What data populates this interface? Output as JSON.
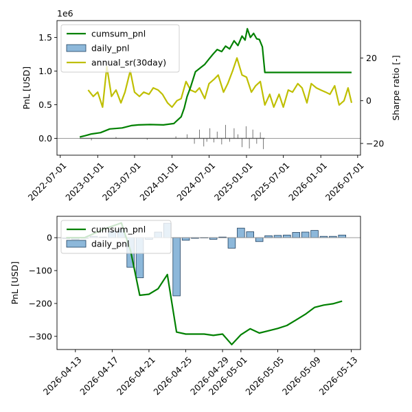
{
  "chart_data": [
    {
      "type": "line",
      "offset_text": "1e6",
      "ylabel": "PnL [USD]",
      "y2label": "Sharpe ratio [-]",
      "ylim": [
        -250000,
        1750000
      ],
      "y2lim": [
        -25.5,
        37.5
      ],
      "y_ticks": [
        0,
        500000,
        1000000,
        1500000
      ],
      "y_tick_labels": [
        "0.0",
        "0.5",
        "1.0",
        "1.5"
      ],
      "y2_ticks": [
        -20,
        0,
        20
      ],
      "y2_tick_labels": [
        "−20",
        "0",
        "20"
      ],
      "x_ticks": [
        "2022-07-01",
        "2023-01-01",
        "2023-07-01",
        "2024-01-01",
        "2024-07-01",
        "2025-01-01",
        "2025-07-01",
        "2026-01-01",
        "2026-07-01"
      ],
      "xlim": [
        "2022-06-15",
        "2026-07-15"
      ],
      "legend_placement": "upper-left",
      "legend": [
        "cumsum_pnl",
        "daily_pnl",
        "annual_sr(30day)"
      ],
      "colors": {
        "cumsum": "#008000",
        "daily_fill": "#8db8da",
        "daily_edge": "#1f3f5f",
        "sr": "#bfbf00",
        "zero_line": "#999999"
      },
      "series": [
        {
          "name": "cumsum_pnl",
          "x": [
            "2022-10-05",
            "2022-11-01",
            "2022-12-01",
            "2023-01-15",
            "2023-03-01",
            "2023-05-01",
            "2023-06-15",
            "2023-07-20",
            "2023-09-15",
            "2023-11-20",
            "2024-01-10",
            "2024-02-15",
            "2024-03-01",
            "2024-03-15",
            "2024-04-01",
            "2024-04-25",
            "2024-05-20",
            "2024-06-10",
            "2024-07-01",
            "2024-07-20",
            "2024-08-10",
            "2024-09-01",
            "2024-09-20",
            "2024-10-10",
            "2024-11-01",
            "2024-11-20",
            "2024-12-10",
            "2024-12-25",
            "2025-01-05",
            "2025-01-20",
            "2025-02-05",
            "2025-02-20",
            "2025-03-05",
            "2025-03-20",
            "2025-04-01",
            "2026-06-01"
          ],
          "values": [
            20000,
            40000,
            65000,
            85000,
            140000,
            155000,
            190000,
            200000,
            205000,
            200000,
            220000,
            320000,
            450000,
            620000,
            760000,
            990000,
            1050000,
            1100000,
            1180000,
            1250000,
            1320000,
            1290000,
            1370000,
            1330000,
            1450000,
            1380000,
            1520000,
            1460000,
            1630000,
            1500000,
            1560000,
            1480000,
            1470000,
            1360000,
            980000,
            980000
          ]
        },
        {
          "name": "daily_pnl",
          "x": [
            "2022-12-01",
            "2023-04-01",
            "2023-09-01",
            "2024-01-20",
            "2024-03-15",
            "2024-04-20",
            "2024-05-15",
            "2024-06-05",
            "2024-06-20",
            "2024-07-05",
            "2024-07-25",
            "2024-08-10",
            "2024-09-01",
            "2024-09-20",
            "2024-10-10",
            "2024-11-01",
            "2024-11-20",
            "2024-12-10",
            "2024-12-30",
            "2025-01-15",
            "2025-02-01",
            "2025-02-20",
            "2025-03-10",
            "2025-03-25"
          ],
          "values": [
            -30000,
            20000,
            -20000,
            30000,
            60000,
            -80000,
            130000,
            -120000,
            -50000,
            150000,
            -60000,
            100000,
            -90000,
            200000,
            -50000,
            150000,
            60000,
            -130000,
            180000,
            -150000,
            130000,
            -80000,
            90000,
            -160000
          ]
        },
        {
          "name": "annual_sr(30day)",
          "axis": "right",
          "x": [
            "2022-11-15",
            "2022-12-10",
            "2023-01-01",
            "2023-01-25",
            "2023-02-15",
            "2023-03-10",
            "2023-04-01",
            "2023-04-25",
            "2023-05-15",
            "2023-06-10",
            "2023-07-01",
            "2023-07-25",
            "2023-08-15",
            "2023-09-10",
            "2023-10-01",
            "2023-10-25",
            "2023-11-15",
            "2023-12-10",
            "2024-01-01",
            "2024-01-25",
            "2024-02-15",
            "2024-03-10",
            "2024-04-01",
            "2024-04-25",
            "2024-05-15",
            "2024-06-10",
            "2024-07-01",
            "2024-07-25",
            "2024-08-15",
            "2024-09-10",
            "2024-10-01",
            "2024-10-25",
            "2024-11-15",
            "2024-12-10",
            "2025-01-01",
            "2025-01-25",
            "2025-02-15",
            "2025-03-10",
            "2025-04-01",
            "2025-04-25",
            "2025-05-15",
            "2025-06-10",
            "2025-07-01",
            "2025-07-25",
            "2025-08-15",
            "2025-09-10",
            "2025-10-01",
            "2025-10-25",
            "2025-11-15",
            "2025-12-10",
            "2026-01-01",
            "2026-01-25",
            "2026-02-15",
            "2026-03-10",
            "2026-04-01",
            "2026-04-25",
            "2026-05-15",
            "2026-06-01"
          ],
          "values": [
            5,
            2,
            4,
            -3,
            16,
            2,
            5,
            -1,
            4,
            14,
            4,
            2,
            4,
            3,
            6,
            5,
            3,
            -1,
            -3,
            0,
            1,
            9,
            5,
            4,
            6,
            1,
            8,
            10,
            12,
            4,
            8,
            14,
            20,
            12,
            11,
            4,
            7,
            9,
            -2,
            3,
            -3,
            3,
            -3,
            5,
            4,
            8,
            6,
            -1,
            8,
            6,
            5,
            4,
            3,
            7,
            -2,
            0,
            6,
            -1
          ]
        }
      ]
    },
    {
      "type": "line",
      "ylabel": "PnL [USD]",
      "ylim": [
        -340,
        65
      ],
      "y_ticks": [
        0,
        -100,
        -200,
        -300
      ],
      "y_tick_labels": [
        "0",
        "−100",
        "−200",
        "−300"
      ],
      "x_ticks": [
        "2026-04-13",
        "2026-04-17",
        "2026-04-21",
        "2026-04-25",
        "2026-04-29",
        "2026-05-01",
        "2026-05-05",
        "2026-05-09",
        "2026-05-13"
      ],
      "xlim": [
        "2026-04-11",
        "2026-05-14"
      ],
      "legend_placement": "upper-left",
      "legend": [
        "cumsum_pnl",
        "daily_pnl"
      ],
      "colors": {
        "cumsum": "#008000",
        "daily_fill": "#8db8da",
        "daily_edge": "#1f3f5f",
        "zero_line": "#999999"
      },
      "series": [
        {
          "name": "cumsum_pnl",
          "x": [
            "2026-04-12",
            "2026-04-14",
            "2026-04-16",
            "2026-04-18",
            "2026-04-19",
            "2026-04-20",
            "2026-04-21",
            "2026-04-22",
            "2026-04-23",
            "2026-04-24",
            "2026-04-25",
            "2026-04-26",
            "2026-04-27",
            "2026-04-28",
            "2026-04-29",
            "2026-04-30",
            "2026-05-01",
            "2026-05-02",
            "2026-05-03",
            "2026-05-04",
            "2026-05-05",
            "2026-05-06",
            "2026-05-07",
            "2026-05-08",
            "2026-05-09",
            "2026-05-10",
            "2026-05-11",
            "2026-05-12"
          ],
          "values": [
            0,
            0,
            25,
            45,
            -40,
            -175,
            -172,
            -155,
            -112,
            -287,
            -293,
            -293,
            -293,
            -297,
            -293,
            -325,
            -295,
            -277,
            -290,
            -283,
            -276,
            -267,
            -250,
            -233,
            -212,
            -205,
            -201,
            -193
          ]
        },
        {
          "name": "daily_pnl",
          "x": [
            "2026-04-12",
            "2026-04-13",
            "2026-04-14",
            "2026-04-15",
            "2026-04-16",
            "2026-04-17",
            "2026-04-18",
            "2026-04-19",
            "2026-04-20",
            "2026-04-21",
            "2026-04-22",
            "2026-04-23",
            "2026-04-24",
            "2026-04-25",
            "2026-04-26",
            "2026-04-27",
            "2026-04-28",
            "2026-04-29",
            "2026-04-30",
            "2026-05-01",
            "2026-05-02",
            "2026-05-03",
            "2026-05-04",
            "2026-05-05",
            "2026-05-06",
            "2026-05-07",
            "2026-05-08",
            "2026-05-09",
            "2026-05-10",
            "2026-05-11",
            "2026-05-12"
          ],
          "values": [
            -3,
            -5,
            -2,
            4,
            2,
            20,
            25,
            -90,
            -122,
            -5,
            17,
            44,
            -177,
            -8,
            -2,
            -1,
            -5,
            2,
            -32,
            29,
            18,
            -12,
            6,
            7,
            8,
            16,
            17,
            22,
            4,
            4,
            8
          ]
        }
      ]
    }
  ]
}
